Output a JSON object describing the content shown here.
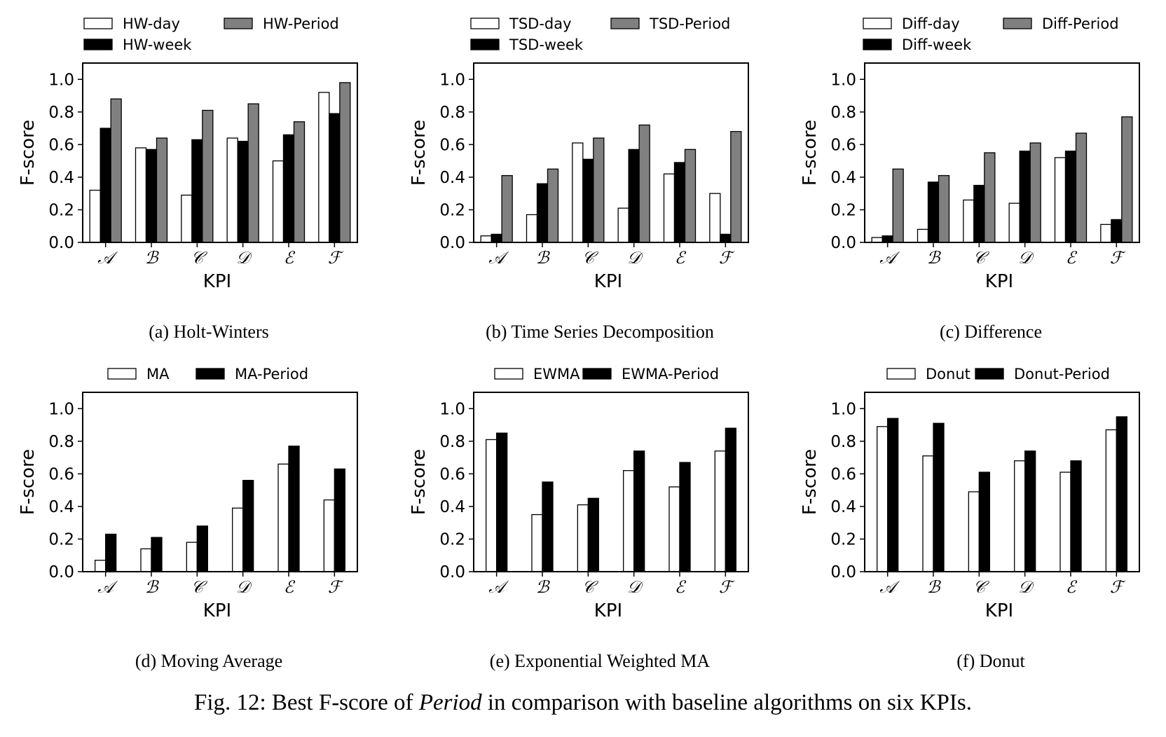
{
  "figure_caption": {
    "prefix": "Fig. 12: Best F-score of ",
    "emphasis": "Period",
    "suffix": " in comparison with baseline algorithms on six KPIs."
  },
  "colors": {
    "white_fill": "#ffffff",
    "gray_fill": "#808080",
    "black_fill": "#000000"
  },
  "chart_data": [
    {
      "type": "bar",
      "caption": "(a)  Holt-Winters",
      "xlabel": "KPI",
      "ylabel": "F-score",
      "ylim": [
        0,
        1.1
      ],
      "yticks": [
        "0.0",
        "0.2",
        "0.4",
        "0.6",
        "0.8",
        "1.0"
      ],
      "categories": [
        "𝒜",
        "ℬ",
        "𝒞",
        "𝒟",
        "ℰ",
        "ℱ"
      ],
      "legend_rows": 2,
      "series": [
        {
          "name": "HW-day",
          "color": "#ffffff",
          "values": [
            0.32,
            0.58,
            0.29,
            0.64,
            0.5,
            0.92
          ]
        },
        {
          "name": "HW-week",
          "color": "#000000",
          "values": [
            0.7,
            0.57,
            0.63,
            0.62,
            0.66,
            0.79
          ]
        },
        {
          "name": "HW-Period",
          "color": "#808080",
          "values": [
            0.88,
            0.64,
            0.81,
            0.85,
            0.74,
            0.98
          ]
        }
      ]
    },
    {
      "type": "bar",
      "caption": "(b)  Time Series Decomposition",
      "xlabel": "KPI",
      "ylabel": "F-score",
      "ylim": [
        0,
        1.1
      ],
      "yticks": [
        "0.0",
        "0.2",
        "0.4",
        "0.6",
        "0.8",
        "1.0"
      ],
      "categories": [
        "𝒜",
        "ℬ",
        "𝒞",
        "𝒟",
        "ℰ",
        "ℱ"
      ],
      "legend_rows": 2,
      "series": [
        {
          "name": "TSD-day",
          "color": "#ffffff",
          "values": [
            0.04,
            0.17,
            0.61,
            0.21,
            0.42,
            0.3
          ]
        },
        {
          "name": "TSD-week",
          "color": "#000000",
          "values": [
            0.05,
            0.36,
            0.51,
            0.57,
            0.49,
            0.05
          ]
        },
        {
          "name": "TSD-Period",
          "color": "#808080",
          "values": [
            0.41,
            0.45,
            0.64,
            0.72,
            0.57,
            0.68
          ]
        }
      ]
    },
    {
      "type": "bar",
      "caption": "(c)  Difference",
      "xlabel": "KPI",
      "ylabel": "F-score",
      "ylim": [
        0,
        1.1
      ],
      "yticks": [
        "0.0",
        "0.2",
        "0.4",
        "0.6",
        "0.8",
        "1.0"
      ],
      "categories": [
        "𝒜",
        "ℬ",
        "𝒞",
        "𝒟",
        "ℰ",
        "ℱ"
      ],
      "legend_rows": 2,
      "series": [
        {
          "name": "Diff-day",
          "color": "#ffffff",
          "values": [
            0.03,
            0.08,
            0.26,
            0.24,
            0.52,
            0.11
          ]
        },
        {
          "name": "Diff-week",
          "color": "#000000",
          "values": [
            0.04,
            0.37,
            0.35,
            0.56,
            0.56,
            0.14
          ]
        },
        {
          "name": "Diff-Period",
          "color": "#808080",
          "values": [
            0.45,
            0.41,
            0.55,
            0.61,
            0.67,
            0.77
          ]
        }
      ]
    },
    {
      "type": "bar",
      "caption": "(d)  Moving Average",
      "xlabel": "KPI",
      "ylabel": "F-score",
      "ylim": [
        0,
        1.1
      ],
      "yticks": [
        "0.0",
        "0.2",
        "0.4",
        "0.6",
        "0.8",
        "1.0"
      ],
      "categories": [
        "𝒜",
        "ℬ",
        "𝒞",
        "𝒟",
        "ℰ",
        "ℱ"
      ],
      "legend_rows": 1,
      "series": [
        {
          "name": "MA",
          "color": "#ffffff",
          "values": [
            0.07,
            0.14,
            0.18,
            0.39,
            0.66,
            0.44
          ]
        },
        {
          "name": "MA-Period",
          "color": "#000000",
          "values": [
            0.23,
            0.21,
            0.28,
            0.56,
            0.77,
            0.63
          ]
        }
      ]
    },
    {
      "type": "bar",
      "caption": "(e)  Exponential Weighted MA",
      "xlabel": "KPI",
      "ylabel": "F-score",
      "ylim": [
        0,
        1.1
      ],
      "yticks": [
        "0.0",
        "0.2",
        "0.4",
        "0.6",
        "0.8",
        "1.0"
      ],
      "categories": [
        "𝒜",
        "ℬ",
        "𝒞",
        "𝒟",
        "ℰ",
        "ℱ"
      ],
      "legend_rows": 1,
      "series": [
        {
          "name": "EWMA",
          "color": "#ffffff",
          "values": [
            0.81,
            0.35,
            0.41,
            0.62,
            0.52,
            0.74
          ]
        },
        {
          "name": "EWMA-Period",
          "color": "#000000",
          "values": [
            0.85,
            0.55,
            0.45,
            0.74,
            0.67,
            0.88
          ]
        }
      ]
    },
    {
      "type": "bar",
      "caption": "(f)  Donut",
      "xlabel": "KPI",
      "ylabel": "F-score",
      "ylim": [
        0,
        1.1
      ],
      "yticks": [
        "0.0",
        "0.2",
        "0.4",
        "0.6",
        "0.8",
        "1.0"
      ],
      "categories": [
        "𝒜",
        "ℬ",
        "𝒞",
        "𝒟",
        "ℰ",
        "ℱ"
      ],
      "legend_rows": 1,
      "series": [
        {
          "name": "Donut",
          "color": "#ffffff",
          "values": [
            0.89,
            0.71,
            0.49,
            0.68,
            0.61,
            0.87
          ]
        },
        {
          "name": "Donut-Period",
          "color": "#000000",
          "values": [
            0.94,
            0.91,
            0.61,
            0.74,
            0.68,
            0.95
          ]
        }
      ]
    }
  ]
}
